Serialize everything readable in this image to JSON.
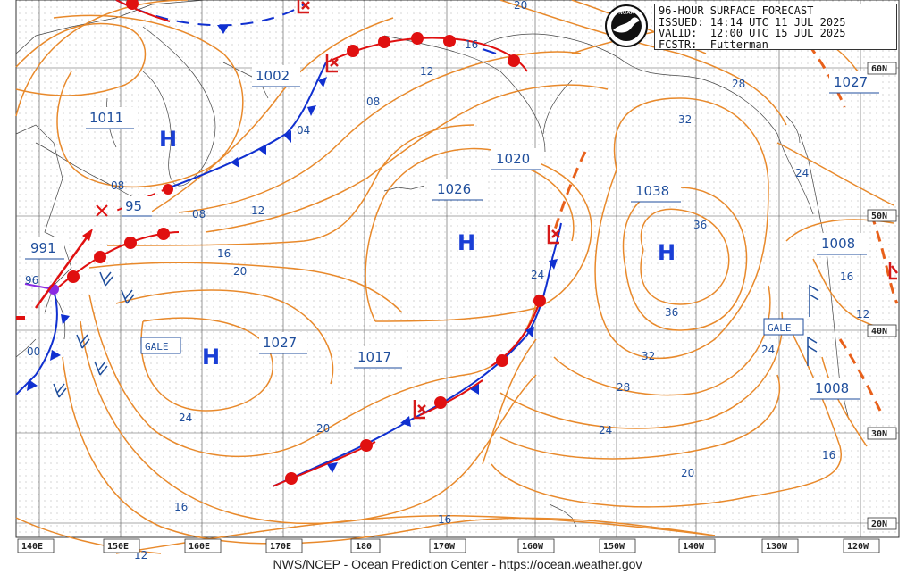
{
  "header": {
    "line1": "96-HOUR SURFACE FORECAST",
    "line2": "ISSUED: 14:14 UTC 11 JUL 2025",
    "line3": "VALID:  12:00 UTC 15 JUL 2025",
    "line4": "FCSTR:  Futterman"
  },
  "logo_text": "NOAA",
  "footer": "NWS/NCEP - Ocean Prediction Center - https://ocean.weather.gov",
  "longitude_labels": [
    "140E",
    "150E",
    "160E",
    "170E",
    "180",
    "170W",
    "160W",
    "150W",
    "140W",
    "130W",
    "120W"
  ],
  "latitude_labels": [
    "50N",
    "40N",
    "30N",
    "20N"
  ],
  "latitude_labels_extra": [
    "60N"
  ],
  "pressure_centers": [
    {
      "type": "H",
      "value": "1011",
      "id": "h-1011"
    },
    {
      "type": "L",
      "value": "1002",
      "id": "l-1002"
    },
    {
      "type": "L",
      "value": "995",
      "id": "l-995"
    },
    {
      "type": "L",
      "value": "991",
      "id": "l-991"
    },
    {
      "type": "H",
      "value": "1027",
      "id": "h-1027-west"
    },
    {
      "type": "H",
      "value": "1026",
      "id": "h-1026"
    },
    {
      "type": "L",
      "value": "1020",
      "id": "l-1020"
    },
    {
      "type": "H",
      "value": "1038",
      "id": "h-1038"
    },
    {
      "type": "L",
      "value": "1017",
      "id": "l-1017"
    },
    {
      "type": "H",
      "value": "1027",
      "id": "h-1027-east"
    },
    {
      "type": "L",
      "value": "1008",
      "id": "l-1008-north"
    },
    {
      "type": "L",
      "value": "1008",
      "id": "l-1008-south"
    }
  ],
  "center_labels": {
    "c1011": "1011",
    "c1002": "1002",
    "c995": "95",
    "c991": "991",
    "c96": "96",
    "c00": "00",
    "c1027w": "1027",
    "c1017": "1017",
    "c1026": "1026",
    "c1020": "1020",
    "c1038": "1038",
    "c1027e": "1027",
    "c1008n": "1008",
    "c1008s": "1008"
  },
  "gale_labels": [
    "GALE",
    "GALE"
  ],
  "isobar_labels": {
    "i04": "04",
    "i08a": "08",
    "i08b": "08",
    "i08c": "08",
    "i12a": "12",
    "i12b": "12",
    "i12c": "12",
    "i12d": "12",
    "i16a": "16",
    "i16b": "16",
    "i16c": "16",
    "i16d": "16",
    "i16e": "16",
    "i20a": "20",
    "i20b": "20",
    "i20c": "20",
    "i20d": "20",
    "i24a": "24",
    "i24b": "24",
    "i24c": "24",
    "i24d": "24",
    "i24e": "24",
    "i28a": "28",
    "i28b": "28",
    "i32a": "32",
    "i32b": "32",
    "i36a": "36",
    "i36b": "36"
  },
  "colors": {
    "isobar": "#e8892b",
    "label": "#1f4e9c",
    "high": "#1a3fd6",
    "low": "#d61a1a",
    "warm_front": "#e01010",
    "cold_front": "#1030d0",
    "trough": "#e8892b",
    "occluded": "#8a2be2",
    "grid": "#555555"
  }
}
